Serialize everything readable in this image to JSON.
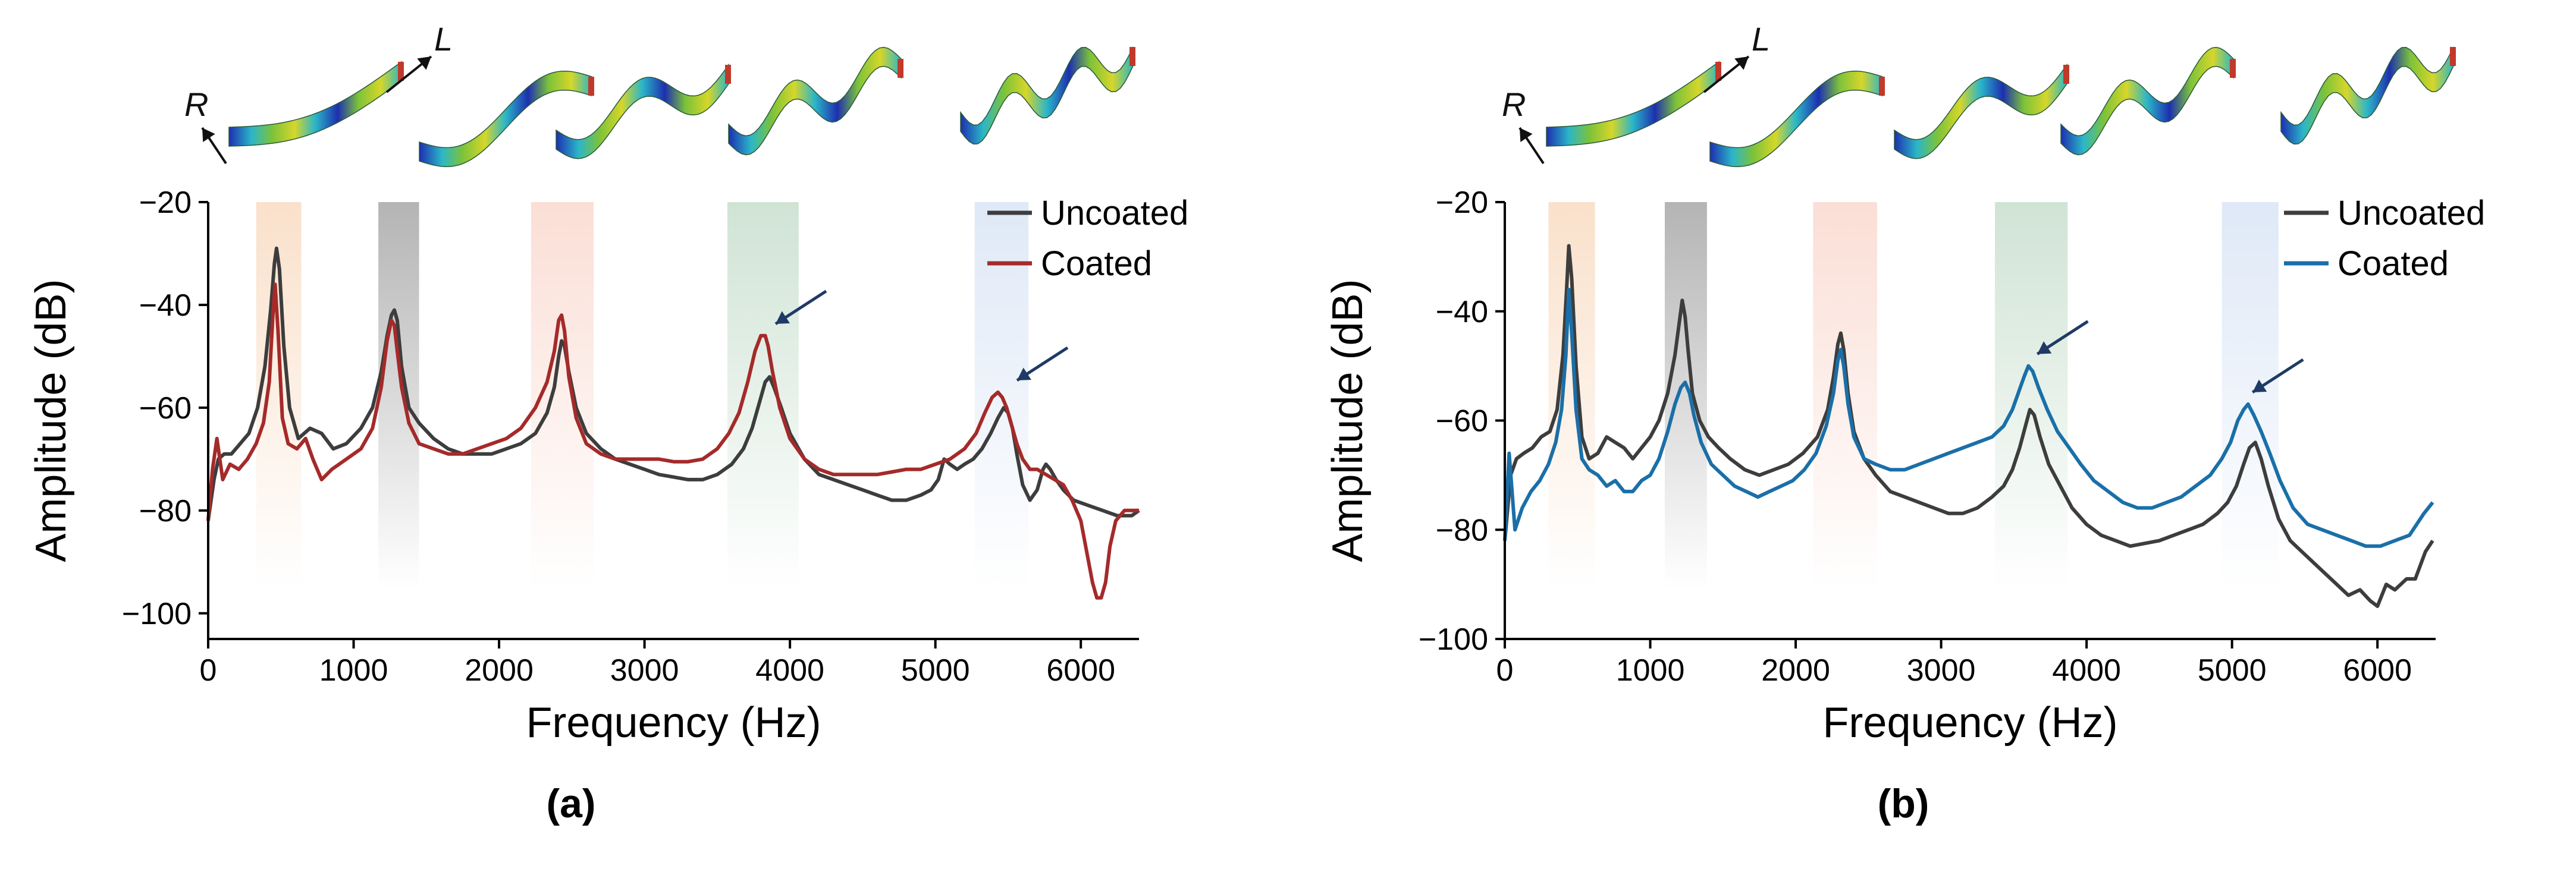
{
  "chart_data": [
    {
      "panel": "a",
      "type": "line",
      "caption": "(a)",
      "xlabel": "Frequency (Hz)",
      "ylabel": "Amplitude (dB)",
      "xlim": [
        0,
        6400
      ],
      "ylim": [
        -105,
        -20
      ],
      "xticks": [
        0,
        1000,
        2000,
        3000,
        4000,
        5000,
        6000
      ],
      "yticks": [
        -20,
        -40,
        -60,
        -80,
        -100
      ],
      "xtick_labels": [
        "0",
        "1000",
        "2000",
        "3000",
        "4000",
        "5000",
        "6000"
      ],
      "ytick_labels": [
        "−20",
        "−40",
        "−60",
        "−80",
        "−100"
      ],
      "mode_labels": {
        "radial": "R",
        "longitudinal": "L"
      },
      "bands": [
        {
          "x0": 330,
          "x1": 640,
          "color": "#f5c8a0"
        },
        {
          "x0": 1170,
          "x1": 1450,
          "color": "#777777"
        },
        {
          "x0": 2220,
          "x1": 2650,
          "color": "#f7c4b4"
        },
        {
          "x0": 3570,
          "x1": 4060,
          "color": "#a9cdb2"
        },
        {
          "x0": 5270,
          "x1": 5640,
          "color": "#c4d6f0"
        }
      ],
      "arrows_at": [
        [
          3840,
          -46
        ],
        [
          5500,
          -57
        ]
      ],
      "series": [
        {
          "name": "Uncoated",
          "color": "#3d3d3d",
          "x": [
            0,
            40,
            70,
            110,
            160,
            220,
            280,
            340,
            390,
            430,
            455,
            470,
            490,
            520,
            560,
            620,
            700,
            780,
            860,
            950,
            1050,
            1130,
            1190,
            1230,
            1260,
            1280,
            1300,
            1330,
            1380,
            1450,
            1550,
            1650,
            1750,
            1850,
            1950,
            2050,
            2150,
            2250,
            2330,
            2380,
            2410,
            2430,
            2450,
            2480,
            2530,
            2600,
            2700,
            2800,
            2900,
            3000,
            3100,
            3200,
            3300,
            3400,
            3500,
            3600,
            3680,
            3740,
            3790,
            3830,
            3860,
            3890,
            3940,
            4000,
            4100,
            4200,
            4300,
            4400,
            4500,
            4600,
            4700,
            4800,
            4900,
            4970,
            5020,
            5060,
            5100,
            5150,
            5200,
            5260,
            5320,
            5380,
            5430,
            5470,
            5500,
            5530,
            5560,
            5600,
            5650,
            5700,
            5740,
            5760,
            5790,
            5830,
            5880,
            5950,
            6050,
            6150,
            6250,
            6350,
            6400
          ],
          "y": [
            -82,
            -74,
            -70,
            -69,
            -69,
            -67,
            -65,
            -60,
            -52,
            -41,
            -32,
            -29,
            -33,
            -48,
            -60,
            -66,
            -64,
            -65,
            -68,
            -67,
            -64,
            -60,
            -53,
            -46,
            -42,
            -41,
            -43,
            -52,
            -60,
            -63,
            -66,
            -68,
            -69,
            -69,
            -69,
            -68,
            -67,
            -65,
            -61,
            -56,
            -50,
            -47,
            -48,
            -53,
            -60,
            -65,
            -68,
            -70,
            -71,
            -72,
            -73,
            -73.5,
            -74,
            -74,
            -73,
            -71,
            -68,
            -64,
            -59,
            -55,
            -54,
            -56,
            -60,
            -65,
            -70,
            -73,
            -74,
            -75,
            -76,
            -77,
            -78,
            -78,
            -77,
            -76,
            -74,
            -70,
            -71,
            -72,
            -71,
            -70,
            -68,
            -65,
            -62,
            -60,
            -61,
            -64,
            -69,
            -75,
            -78,
            -76,
            -72,
            -71,
            -72,
            -74,
            -76,
            -78,
            -79,
            -80,
            -81,
            -81,
            -80
          ]
        },
        {
          "name": "Coated",
          "color": "#a52a2a",
          "x": [
            0,
            30,
            60,
            100,
            150,
            210,
            270,
            330,
            380,
            420,
            445,
            460,
            480,
            510,
            550,
            610,
            670,
            720,
            780,
            850,
            950,
            1050,
            1130,
            1190,
            1230,
            1260,
            1280,
            1300,
            1330,
            1380,
            1450,
            1550,
            1650,
            1750,
            1850,
            1950,
            2050,
            2150,
            2250,
            2330,
            2380,
            2410,
            2430,
            2450,
            2480,
            2530,
            2600,
            2700,
            2800,
            2900,
            3000,
            3100,
            3200,
            3300,
            3400,
            3500,
            3580,
            3650,
            3710,
            3760,
            3800,
            3830,
            3850,
            3880,
            3930,
            4000,
            4100,
            4200,
            4300,
            4400,
            4500,
            4600,
            4700,
            4800,
            4900,
            5000,
            5100,
            5200,
            5280,
            5340,
            5390,
            5430,
            5460,
            5490,
            5520,
            5560,
            5600,
            5650,
            5700,
            5760,
            5820,
            5880,
            5940,
            6000,
            6040,
            6080,
            6110,
            6140,
            6170,
            6200,
            6240,
            6300,
            6350,
            6400
          ],
          "y": [
            -82,
            -72,
            -66,
            -74,
            -71,
            -72,
            -70,
            -67,
            -63,
            -55,
            -42,
            -36,
            -45,
            -62,
            -67,
            -68,
            -66,
            -70,
            -74,
            -72,
            -70,
            -68,
            -64,
            -56,
            -47,
            -43,
            -44,
            -49,
            -56,
            -63,
            -67,
            -68,
            -69,
            -69,
            -68,
            -67,
            -66,
            -64,
            -60,
            -55,
            -49,
            -43,
            -42,
            -45,
            -54,
            -62,
            -67,
            -69,
            -70,
            -70,
            -70,
            -70,
            -70.5,
            -70.5,
            -70,
            -68,
            -65,
            -61,
            -55,
            -49,
            -46,
            -46,
            -48,
            -53,
            -60,
            -66,
            -70,
            -72,
            -73,
            -73,
            -73,
            -73,
            -72.5,
            -72,
            -72,
            -71,
            -70,
            -68,
            -65,
            -61,
            -58,
            -57,
            -58,
            -60,
            -63,
            -67,
            -70,
            -72,
            -72,
            -73,
            -74,
            -75,
            -78,
            -82,
            -88,
            -94,
            -97,
            -97,
            -94,
            -87,
            -82,
            -80,
            -80,
            -80
          ]
        }
      ]
    },
    {
      "panel": "b",
      "type": "line",
      "caption": "(b)",
      "xlabel": "Frequency (Hz)",
      "ylabel": "Amplitude (dB)",
      "xlim": [
        0,
        6400
      ],
      "ylim": [
        -100,
        -20
      ],
      "xticks": [
        0,
        1000,
        2000,
        3000,
        4000,
        5000,
        6000
      ],
      "yticks": [
        -20,
        -40,
        -60,
        -80,
        -100
      ],
      "xtick_labels": [
        "0",
        "1000",
        "2000",
        "3000",
        "4000",
        "5000",
        "6000"
      ],
      "ytick_labels": [
        "−20",
        "−40",
        "−60",
        "−80",
        "−100"
      ],
      "mode_labels": {
        "radial": "R",
        "longitudinal": "L"
      },
      "bands": [
        {
          "x0": 300,
          "x1": 620,
          "color": "#f5c8a0"
        },
        {
          "x0": 1100,
          "x1": 1390,
          "color": "#777777"
        },
        {
          "x0": 2120,
          "x1": 2560,
          "color": "#f7c4b4"
        },
        {
          "x0": 3370,
          "x1": 3870,
          "color": "#a9cdb2"
        },
        {
          "x0": 4930,
          "x1": 5320,
          "color": "#c4d6f0"
        }
      ],
      "arrows_at": [
        [
          3600,
          -50
        ],
        [
          5080,
          -57
        ]
      ],
      "series": [
        {
          "name": "Uncoated",
          "color": "#3d3d3d",
          "x": [
            0,
            40,
            80,
            130,
            190,
            250,
            310,
            360,
            400,
            425,
            440,
            460,
            490,
            530,
            580,
            640,
            700,
            760,
            820,
            880,
            940,
            1000,
            1060,
            1120,
            1170,
            1200,
            1220,
            1240,
            1260,
            1290,
            1340,
            1400,
            1470,
            1550,
            1650,
            1750,
            1850,
            1950,
            2050,
            2150,
            2220,
            2260,
            2290,
            2310,
            2330,
            2360,
            2400,
            2470,
            2550,
            2650,
            2750,
            2850,
            2950,
            3050,
            3150,
            3250,
            3350,
            3430,
            3490,
            3540,
            3580,
            3610,
            3640,
            3680,
            3740,
            3820,
            3900,
            4000,
            4100,
            4200,
            4300,
            4400,
            4500,
            4600,
            4700,
            4800,
            4900,
            4970,
            5030,
            5080,
            5120,
            5160,
            5200,
            5250,
            5320,
            5400,
            5480,
            5560,
            5640,
            5720,
            5800,
            5880,
            5950,
            6000,
            6060,
            6120,
            6200,
            6260,
            6330,
            6380
          ],
          "y": [
            -82,
            -70,
            -67,
            -66,
            -65,
            -63,
            -62,
            -58,
            -48,
            -36,
            -28,
            -34,
            -50,
            -63,
            -67,
            -66,
            -63,
            -64,
            -65,
            -67,
            -65,
            -63,
            -60,
            -55,
            -48,
            -42,
            -38,
            -41,
            -47,
            -55,
            -60,
            -63,
            -65,
            -67,
            -69,
            -70,
            -69,
            -68,
            -66,
            -63,
            -58,
            -52,
            -46,
            -44,
            -47,
            -55,
            -62,
            -67,
            -70,
            -73,
            -74,
            -75,
            -76,
            -77,
            -77,
            -76,
            -74,
            -72,
            -69,
            -65,
            -61,
            -58,
            -59,
            -63,
            -68,
            -72,
            -76,
            -79,
            -81,
            -82,
            -83,
            -82.5,
            -82,
            -81,
            -80,
            -79,
            -77,
            -75,
            -72,
            -68,
            -65,
            -64,
            -67,
            -72,
            -78,
            -82,
            -84,
            -86,
            -88,
            -90,
            -92,
            -91,
            -93,
            -94,
            -90,
            -91,
            -89,
            -89,
            -84,
            -82
          ]
        },
        {
          "name": "Coated",
          "color": "#1a6fa8",
          "x": [
            0,
            30,
            70,
            120,
            180,
            240,
            300,
            350,
            390,
            420,
            440,
            460,
            490,
            530,
            580,
            640,
            700,
            760,
            820,
            880,
            940,
            1000,
            1060,
            1120,
            1170,
            1210,
            1240,
            1270,
            1300,
            1350,
            1420,
            1500,
            1580,
            1660,
            1740,
            1820,
            1900,
            1980,
            2060,
            2140,
            2210,
            2260,
            2290,
            2310,
            2330,
            2360,
            2400,
            2470,
            2550,
            2650,
            2750,
            2850,
            2950,
            3050,
            3150,
            3250,
            3350,
            3430,
            3490,
            3530,
            3570,
            3600,
            3630,
            3670,
            3730,
            3800,
            3880,
            3960,
            4050,
            4150,
            4250,
            4350,
            4450,
            4550,
            4650,
            4750,
            4850,
            4930,
            4990,
            5040,
            5080,
            5110,
            5150,
            5200,
            5260,
            5330,
            5420,
            5520,
            5620,
            5720,
            5820,
            5920,
            6020,
            6120,
            6220,
            6320,
            6380
          ],
          "y": [
            -82,
            -66,
            -80,
            -76,
            -73,
            -71,
            -68,
            -64,
            -58,
            -48,
            -36,
            -44,
            -58,
            -67,
            -69,
            -70,
            -72,
            -71,
            -73,
            -73,
            -71,
            -70,
            -67,
            -62,
            -57,
            -54,
            -53,
            -55,
            -59,
            -64,
            -68,
            -70,
            -72,
            -73,
            -74,
            -73,
            -72,
            -71,
            -69,
            -66,
            -61,
            -55,
            -49,
            -47,
            -50,
            -57,
            -63,
            -67,
            -68,
            -69,
            -69,
            -68,
            -67,
            -66,
            -65,
            -64,
            -63,
            -61,
            -58,
            -55,
            -52,
            -50,
            -51,
            -54,
            -58,
            -62,
            -65,
            -68,
            -71,
            -73,
            -75,
            -76,
            -76,
            -75,
            -74,
            -72,
            -70,
            -67,
            -64,
            -60,
            -58,
            -57,
            -59,
            -62,
            -66,
            -71,
            -76,
            -79,
            -80,
            -81,
            -82,
            -83,
            -83,
            -82,
            -81,
            -77,
            -75
          ]
        }
      ]
    }
  ]
}
